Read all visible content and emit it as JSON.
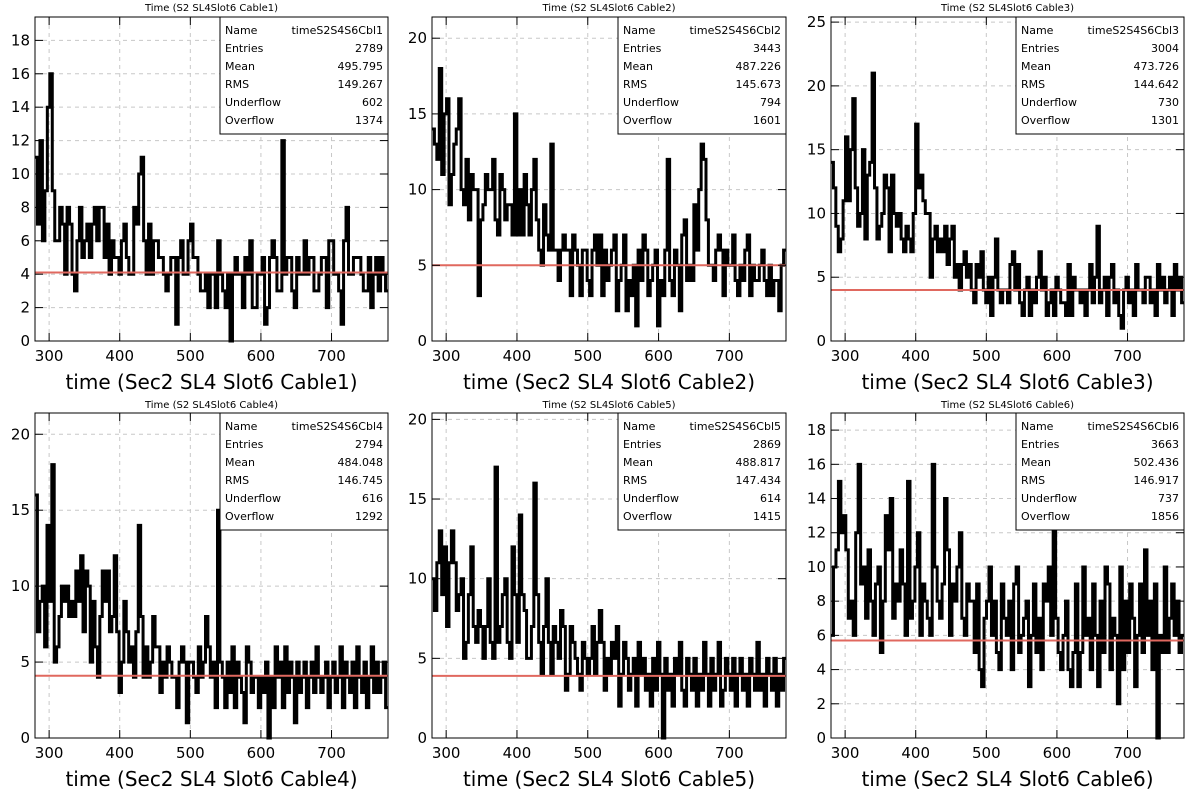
{
  "panels": [
    {
      "title": "Time (S2 SL4Slot6 Cable1)",
      "stats": [
        [
          "Name",
          "timeS2S4S6Cbl1"
        ],
        [
          "Entries",
          "2789"
        ],
        [
          "Mean",
          "495.795"
        ],
        [
          "RMS",
          "149.267"
        ],
        [
          "Underflow",
          "602"
        ],
        [
          "Overflow",
          "1374"
        ]
      ],
      "xlabel": "time (Sec2 SL4 Slot6 Cable1)"
    },
    {
      "title": "Time (S2 SL4Slot6 Cable2)",
      "stats": [
        [
          "Name",
          "timeS2S4S6Cbl2"
        ],
        [
          "Entries",
          "3443"
        ],
        [
          "Mean",
          "487.226"
        ],
        [
          "RMS",
          "145.673"
        ],
        [
          "Underflow",
          "794"
        ],
        [
          "Overflow",
          "1601"
        ]
      ],
      "xlabel": "time (Sec2 SL4 Slot6 Cable2)"
    },
    {
      "title": "Time (S2 SL4Slot6 Cable3)",
      "stats": [
        [
          "Name",
          "timeS2S4S6Cbl3"
        ],
        [
          "Entries",
          "3004"
        ],
        [
          "Mean",
          "473.726"
        ],
        [
          "RMS",
          "144.642"
        ],
        [
          "Underflow",
          "730"
        ],
        [
          "Overflow",
          "1301"
        ]
      ],
      "xlabel": "time (Sec2 SL4 Slot6 Cable3)"
    },
    {
      "title": "Time (S2 SL4Slot6 Cable4)",
      "stats": [
        [
          "Name",
          "timeS2S4S6Cbl4"
        ],
        [
          "Entries",
          "2794"
        ],
        [
          "Mean",
          "484.048"
        ],
        [
          "RMS",
          "146.745"
        ],
        [
          "Underflow",
          "616"
        ],
        [
          "Overflow",
          "1292"
        ]
      ],
      "xlabel": "time (Sec2 SL4 Slot6 Cable4)"
    },
    {
      "title": "Time (S2 SL4Slot6 Cable5)",
      "stats": [
        [
          "Name",
          "timeS2S4S6Cbl5"
        ],
        [
          "Entries",
          "2869"
        ],
        [
          "Mean",
          "488.817"
        ],
        [
          "RMS",
          "147.434"
        ],
        [
          "Underflow",
          "614"
        ],
        [
          "Overflow",
          "1415"
        ]
      ],
      "xlabel": "time (Sec2 SL4 Slot6 Cable5)"
    },
    {
      "title": "Time (S2 SL4Slot6 Cable6)",
      "stats": [
        [
          "Name",
          "timeS2S4S6Cbl6"
        ],
        [
          "Entries",
          "3663"
        ],
        [
          "Mean",
          "502.436"
        ],
        [
          "RMS",
          "146.917"
        ],
        [
          "Underflow",
          "737"
        ],
        [
          "Overflow",
          "1856"
        ]
      ],
      "xlabel": "time (Sec2 SL4 Slot6 Cable6)"
    }
  ],
  "chart_data": [
    {
      "type": "bar",
      "title": "Time (S2 SL4Slot6 Cable1)",
      "xlabel": "time (Sec2 SL4 Slot6 Cable1)",
      "xlim": [
        280,
        780
      ],
      "ylim": [
        0,
        19.4
      ],
      "xticks": [
        300,
        400,
        500,
        600,
        700
      ],
      "yticks": [
        0,
        2,
        4,
        6,
        8,
        10,
        12,
        14,
        16,
        18
      ],
      "grid": true,
      "fit_level": 4.1,
      "line_color": "#000000",
      "fit_color": "#e0685f",
      "values": [
        11,
        7,
        12,
        6,
        9,
        14,
        16,
        9,
        6,
        6,
        8,
        7,
        4,
        8,
        7,
        4,
        3,
        6,
        8,
        5,
        6,
        7,
        5,
        7,
        8,
        6,
        8,
        8,
        5,
        7,
        4,
        6,
        5,
        5,
        4,
        6,
        7,
        5,
        4,
        4,
        8,
        7,
        10,
        11,
        6,
        4,
        7,
        4,
        6,
        6,
        5,
        5,
        4,
        3,
        4,
        5,
        5,
        1,
        5,
        6,
        4,
        4,
        6,
        7,
        5,
        5,
        4,
        3,
        3,
        4,
        2,
        4,
        4,
        2,
        6,
        4,
        3,
        2,
        4,
        0,
        4,
        5,
        4,
        4,
        2,
        5,
        4,
        6,
        2,
        2,
        4,
        4,
        5,
        1,
        2,
        5,
        6,
        5,
        3,
        3,
        12,
        4,
        5,
        5,
        3,
        2,
        5,
        4,
        4,
        6,
        4,
        5,
        5,
        3,
        3,
        4,
        5,
        5,
        2,
        6,
        6,
        4,
        4,
        3,
        1,
        6,
        8,
        4,
        4,
        5,
        5,
        5,
        4,
        3,
        3,
        5,
        2,
        4,
        5,
        3,
        5,
        4,
        3
      ]
    },
    {
      "type": "bar",
      "title": "Time (S2 SL4Slot6 Cable2)",
      "xlabel": "time (Sec2 SL4 Slot6 Cable2)",
      "xlim": [
        280,
        780
      ],
      "ylim": [
        0,
        21.4
      ],
      "xticks": [
        300,
        400,
        500,
        600,
        700
      ],
      "yticks": [
        0,
        5,
        10,
        15,
        20
      ],
      "grid": true,
      "fit_level": 5.0,
      "line_color": "#000000",
      "fit_color": "#e0685f",
      "values": [
        14,
        13,
        12,
        18,
        11,
        15,
        16,
        9,
        11,
        13,
        14,
        16,
        10,
        9,
        12,
        8,
        11,
        10,
        10,
        3,
        8,
        9,
        11,
        10,
        10,
        12,
        8,
        7,
        11,
        10,
        8,
        9,
        9,
        7,
        15,
        7,
        10,
        7,
        11,
        9,
        7,
        10,
        12,
        8,
        6,
        5,
        9,
        7,
        6,
        13,
        6,
        6,
        4,
        6,
        7,
        6,
        6,
        3,
        7,
        6,
        5,
        3,
        6,
        6,
        4,
        3,
        6,
        7,
        5,
        7,
        3,
        6,
        4,
        5,
        6,
        7,
        2,
        4,
        5,
        7,
        2,
        4,
        3,
        5,
        1,
        6,
        4,
        7,
        6,
        3,
        4,
        5,
        6,
        1,
        4,
        3,
        6,
        12,
        4,
        3,
        6,
        5,
        2,
        7,
        8,
        4,
        5,
        4,
        9,
        6,
        10,
        13,
        12,
        8,
        5,
        5,
        4,
        6,
        7,
        6,
        3,
        6,
        5,
        5,
        7,
        4,
        3,
        5,
        4,
        6,
        7,
        3,
        5,
        4,
        4,
        5,
        6,
        4,
        3,
        5,
        3,
        4,
        4,
        2,
        5,
        6
      ]
    },
    {
      "type": "bar",
      "title": "Time (S2 SL4Slot6 Cable3)",
      "xlabel": "time (Sec2 SL4 Slot6 Cable3)",
      "xlim": [
        280,
        780
      ],
      "ylim": [
        0,
        25.4
      ],
      "xticks": [
        300,
        400,
        500,
        600,
        700
      ],
      "yticks": [
        0,
        5,
        10,
        15,
        20,
        25
      ],
      "grid": true,
      "fit_level": 4.0,
      "line_color": "#000000",
      "fit_color": "#e0685f",
      "values": [
        14,
        12,
        9,
        7,
        8,
        11,
        16,
        11,
        15,
        19,
        12,
        9,
        10,
        15,
        8,
        13,
        14,
        21,
        12,
        8,
        9,
        10,
        13,
        12,
        7,
        13,
        10,
        9,
        10,
        8,
        7,
        9,
        8,
        7,
        10,
        17,
        12,
        13,
        11,
        10,
        10,
        5,
        8,
        9,
        7,
        8,
        7,
        9,
        6,
        8,
        9,
        5,
        6,
        4,
        6,
        7,
        5,
        6,
        4,
        3,
        6,
        5,
        7,
        4,
        3,
        5,
        2,
        5,
        8,
        4,
        3,
        4,
        4,
        3,
        6,
        7,
        4,
        6,
        3,
        2,
        4,
        5,
        2,
        4,
        3,
        5,
        7,
        4,
        5,
        2,
        3,
        4,
        2,
        5,
        4,
        3,
        3,
        2,
        6,
        2,
        5,
        4,
        4,
        3,
        4,
        2,
        4,
        6,
        3,
        5,
        9,
        3,
        4,
        5,
        2,
        5,
        6,
        3,
        4,
        2,
        1,
        4,
        5,
        3,
        4,
        2,
        6,
        4,
        4,
        3,
        5,
        5,
        3,
        4,
        2,
        6,
        4,
        5,
        3,
        4,
        5,
        2,
        6,
        4,
        5,
        3
      ]
    },
    {
      "type": "bar",
      "title": "Time (S2 SL4Slot6 Cable4)",
      "xlabel": "time (Sec2 SL4 Slot6 Cable4)",
      "xlim": [
        280,
        780
      ],
      "ylim": [
        0,
        21.4
      ],
      "xticks": [
        300,
        400,
        500,
        600,
        700
      ],
      "yticks": [
        0,
        5,
        10,
        15,
        20
      ],
      "grid": true,
      "fit_level": 4.1,
      "line_color": "#000000",
      "fit_color": "#e0685f",
      "values": [
        16,
        7,
        9,
        10,
        6,
        14,
        9,
        18,
        5,
        6,
        8,
        10,
        9,
        10,
        8,
        9,
        8,
        11,
        9,
        12,
        7,
        11,
        10,
        5,
        9,
        6,
        4,
        8,
        11,
        9,
        11,
        7,
        8,
        12,
        7,
        3,
        5,
        9,
        7,
        5,
        6,
        4,
        7,
        14,
        8,
        4,
        6,
        4,
        5,
        8,
        6,
        6,
        3,
        5,
        4,
        6,
        5,
        4,
        4,
        2,
        5,
        6,
        5,
        1,
        5,
        5,
        4,
        3,
        6,
        4,
        5,
        8,
        6,
        4,
        5,
        2,
        15,
        5,
        4,
        2,
        5,
        3,
        6,
        2,
        5,
        4,
        3,
        1,
        6,
        5,
        3,
        4,
        4,
        2,
        4,
        3,
        5,
        0,
        4,
        2,
        6,
        4,
        5,
        2,
        6,
        3,
        5,
        4,
        1,
        5,
        3,
        4,
        5,
        2,
        4,
        5,
        3,
        6,
        4,
        3,
        4,
        5,
        2,
        4,
        5,
        3,
        4,
        6,
        2,
        5,
        4,
        3,
        5,
        2,
        6,
        4,
        3,
        5,
        2,
        4,
        6,
        3,
        5,
        3,
        4,
        5,
        2
      ]
    },
    {
      "type": "bar",
      "title": "Time (S2 SL4Slot6 Cable5)",
      "xlabel": "time (Sec2 SL4 Slot6 Cable5)",
      "xlim": [
        280,
        780
      ],
      "ylim": [
        0,
        20.4
      ],
      "xticks": [
        300,
        400,
        500,
        600,
        700
      ],
      "yticks": [
        0,
        5,
        10,
        15,
        20
      ],
      "grid": true,
      "fit_level": 3.9,
      "line_color": "#000000",
      "fit_color": "#e0685f",
      "values": [
        10,
        8,
        11,
        13,
        9,
        12,
        7,
        11,
        13,
        11,
        8,
        9,
        10,
        5,
        6,
        9,
        12,
        7,
        6,
        8,
        7,
        5,
        7,
        10,
        6,
        5,
        17,
        6,
        7,
        9,
        10,
        6,
        5,
        12,
        9,
        6,
        14,
        9,
        8,
        5,
        5,
        7,
        16,
        9,
        6,
        4,
        7,
        10,
        6,
        4,
        7,
        6,
        5,
        8,
        7,
        3,
        4,
        7,
        6,
        5,
        4,
        3,
        6,
        5,
        4,
        5,
        7,
        4,
        6,
        8,
        6,
        3,
        5,
        4,
        6,
        5,
        7,
        2,
        4,
        6,
        5,
        3,
        4,
        5,
        2,
        6,
        4,
        5,
        3,
        4,
        2,
        5,
        3,
        6,
        4,
        0,
        5,
        3,
        4,
        2,
        5,
        4,
        6,
        3,
        2,
        5,
        4,
        3,
        5,
        2,
        4,
        3,
        6,
        4,
        2,
        5,
        3,
        4,
        6,
        2,
        3,
        5,
        4,
        3,
        5,
        2,
        4,
        5,
        3,
        4,
        2,
        5,
        4,
        3,
        6,
        3,
        4,
        2,
        5,
        4,
        3,
        5,
        2,
        4,
        3,
        5
      ]
    },
    {
      "type": "bar",
      "title": "Time (S2 SL4Slot6 Cable6)",
      "xlabel": "time (Sec2 SL4 Slot6 Cable6)",
      "xlim": [
        280,
        780
      ],
      "ylim": [
        0,
        19.0
      ],
      "xticks": [
        300,
        400,
        500,
        600,
        700
      ],
      "yticks": [
        0,
        2,
        4,
        6,
        8,
        10,
        12,
        14,
        16,
        18
      ],
      "grid": true,
      "fit_level": 5.7,
      "line_color": "#000000",
      "fit_color": "#e0685f",
      "values": [
        6,
        10,
        11,
        15,
        12,
        13,
        11,
        7,
        8,
        6,
        12,
        16,
        9,
        10,
        7,
        11,
        8,
        6,
        9,
        10,
        5,
        8,
        13,
        11,
        14,
        7,
        9,
        8,
        11,
        9,
        6,
        15,
        7,
        8,
        10,
        12,
        6,
        9,
        8,
        7,
        6,
        16,
        10,
        8,
        7,
        9,
        14,
        11,
        6,
        9,
        8,
        10,
        12,
        7,
        6,
        9,
        8,
        8,
        5,
        9,
        4,
        3,
        7,
        8,
        10,
        6,
        8,
        5,
        4,
        9,
        7,
        6,
        8,
        4,
        9,
        10,
        5,
        6,
        7,
        8,
        3,
        6,
        9,
        5,
        7,
        4,
        9,
        8,
        10,
        6,
        13,
        7,
        5,
        4,
        6,
        8,
        4,
        3,
        5,
        9,
        3,
        5,
        10,
        6,
        7,
        4,
        9,
        6,
        3,
        8,
        5,
        10,
        9,
        4,
        7,
        6,
        2,
        10,
        4,
        8,
        5,
        9,
        7,
        3,
        6,
        9,
        5,
        11,
        6,
        8,
        4,
        9,
        0,
        6,
        5,
        10,
        5,
        7,
        9,
        6,
        8,
        5,
        6
      ]
    }
  ]
}
